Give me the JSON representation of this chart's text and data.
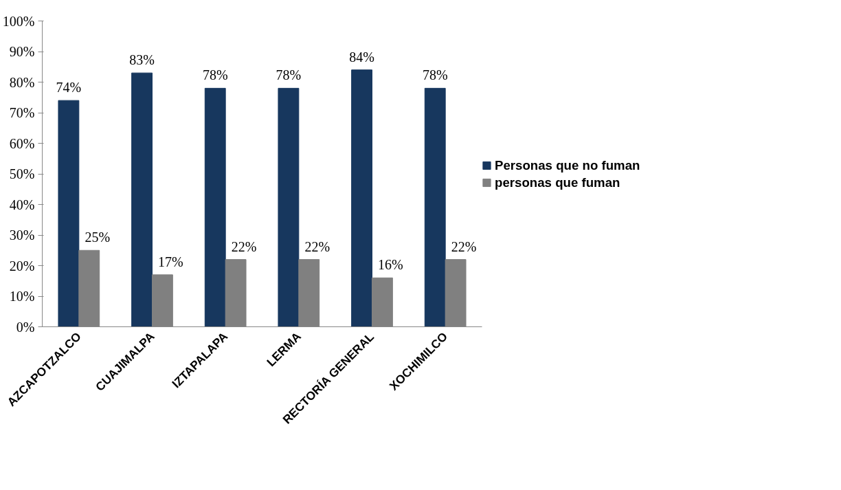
{
  "chart_data": {
    "type": "bar",
    "categories": [
      "AZCAPOTZALCO",
      "CUAJIMALPA",
      "IZTAPALAPA",
      "LERMA",
      "RECTORÍA GENERAL",
      "XOCHIMILCO"
    ],
    "series": [
      {
        "name": "Personas que no fuman",
        "color": "#17375e",
        "values": [
          74,
          83,
          78,
          78,
          84,
          78
        ],
        "value_labels": [
          "74%",
          "83%",
          "78%",
          "78%",
          "84%",
          "78%"
        ]
      },
      {
        "name": "personas que fuman",
        "color": "#808080",
        "values": [
          25,
          17,
          22,
          22,
          16,
          22
        ],
        "value_labels": [
          "25%",
          "17%",
          "22%",
          "22%",
          "16%",
          "22%"
        ]
      }
    ],
    "ylim": [
      0,
      100
    ],
    "yticks": [
      {
        "value": 0,
        "label": "0%"
      },
      {
        "value": 10,
        "label": "10%"
      },
      {
        "value": 20,
        "label": "20%"
      },
      {
        "value": 30,
        "label": "30%"
      },
      {
        "value": 40,
        "label": "40%"
      },
      {
        "value": 50,
        "label": "50%"
      },
      {
        "value": 60,
        "label": "60%"
      },
      {
        "value": 70,
        "label": "70%"
      },
      {
        "value": 80,
        "label": "80%"
      },
      {
        "value": 90,
        "label": "90%"
      },
      {
        "value": 100,
        "label": "100%"
      }
    ],
    "grid": false,
    "legend": "right"
  }
}
